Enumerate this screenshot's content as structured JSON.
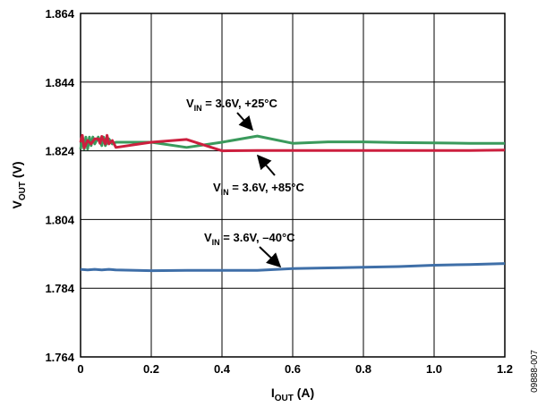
{
  "chart_data": {
    "type": "line",
    "xlabel": {
      "main": "I",
      "sub": "OUT",
      "unit": " (A)"
    },
    "ylabel": {
      "main": "V",
      "sub": "OUT",
      "unit": " (V)"
    },
    "xlim": [
      0,
      1.2
    ],
    "ylim": [
      1.764,
      1.864
    ],
    "x_ticks": [
      "0",
      "0.2",
      "0.4",
      "0.6",
      "0.8",
      "1.0",
      "1.2"
    ],
    "y_ticks": [
      "1.764",
      "1.784",
      "1.804",
      "1.824",
      "1.844",
      "1.864"
    ],
    "grid": true,
    "series": [
      {
        "name": "VIN = 3.6V, +25°C",
        "color": "#3a9a5c",
        "x": [
          0,
          0.005,
          0.01,
          0.015,
          0.02,
          0.025,
          0.03,
          0.035,
          0.04,
          0.05,
          0.06,
          0.065,
          0.07,
          0.08,
          0.09,
          0.1,
          0.2,
          0.3,
          0.4,
          0.5,
          0.6,
          0.7,
          0.8,
          0.9,
          1.0,
          1.1,
          1.2
        ],
        "y": [
          1.8245,
          1.8275,
          1.8245,
          1.828,
          1.8245,
          1.828,
          1.8255,
          1.828,
          1.826,
          1.828,
          1.8255,
          1.828,
          1.8255,
          1.8275,
          1.826,
          1.8265,
          1.8265,
          1.825,
          1.8265,
          1.8283,
          1.8262,
          1.8266,
          1.8266,
          1.8264,
          1.8263,
          1.8262,
          1.8262
        ]
      },
      {
        "name": "VIN = 3.6V, +85°C",
        "color": "#cc1f3e",
        "x": [
          0,
          0.005,
          0.01,
          0.02,
          0.03,
          0.04,
          0.05,
          0.055,
          0.06,
          0.07,
          0.075,
          0.08,
          0.09,
          0.1,
          0.2,
          0.3,
          0.4,
          0.5,
          0.6,
          0.7,
          0.8,
          0.9,
          1.0,
          1.1,
          1.2
        ],
        "y": [
          1.8265,
          1.8285,
          1.8248,
          1.827,
          1.826,
          1.8275,
          1.8275,
          1.8262,
          1.8282,
          1.826,
          1.8285,
          1.826,
          1.827,
          1.825,
          1.8265,
          1.8273,
          1.824,
          1.8241,
          1.8241,
          1.8241,
          1.8241,
          1.8241,
          1.8241,
          1.8241,
          1.8242
        ]
      },
      {
        "name": "VIN = 3.6V, –40°C",
        "color": "#3f6fa8",
        "x": [
          0,
          0.02,
          0.04,
          0.06,
          0.08,
          0.1,
          0.2,
          0.3,
          0.4,
          0.5,
          0.6,
          0.7,
          0.8,
          0.9,
          1.0,
          1.1,
          1.2
        ],
        "y": [
          1.7895,
          1.7893,
          1.7895,
          1.7893,
          1.7895,
          1.7893,
          1.7891,
          1.7892,
          1.7892,
          1.7892,
          1.7897,
          1.7899,
          1.7901,
          1.7903,
          1.7907,
          1.7909,
          1.7912
        ]
      }
    ],
    "annotations": [
      {
        "main": "V",
        "sub": "IN",
        "rest": " = 3.6V, +25°C",
        "arrow_to": [
          0.5,
          1.8282
        ]
      },
      {
        "main": "V",
        "sub": "IN",
        "rest": " = 3.6V, +85°C",
        "arrow_to": [
          0.5,
          1.8243
        ]
      },
      {
        "main": "V",
        "sub": "IN",
        "rest": " = 3.6V, –40°C",
        "arrow_to": [
          0.55,
          1.7895
        ]
      }
    ],
    "figure_id": "09888-007"
  }
}
